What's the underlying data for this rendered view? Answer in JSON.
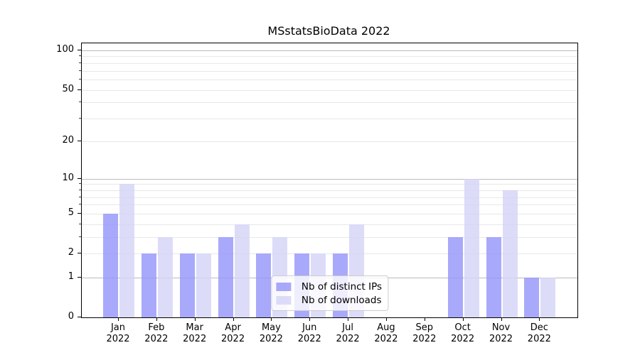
{
  "chart_data": {
    "type": "bar",
    "title": "MSstatsBioData 2022",
    "scale": "log1p",
    "ylim": [
      0,
      113
    ],
    "yticks": [
      0,
      1,
      2,
      5,
      10,
      20,
      50,
      100
    ],
    "y_major_gridlines": [
      1,
      10,
      100
    ],
    "y_minor_gridlines": [
      2,
      3,
      4,
      5,
      6,
      7,
      8,
      9,
      20,
      30,
      40,
      50,
      60,
      70,
      80,
      90
    ],
    "grid_color_major": "#bbbbbb",
    "grid_color_minor": "#e8e8e8",
    "legend_position": "lower center",
    "categories": [
      {
        "month": "Jan",
        "year": "2022"
      },
      {
        "month": "Feb",
        "year": "2022"
      },
      {
        "month": "Mar",
        "year": "2022"
      },
      {
        "month": "Apr",
        "year": "2022"
      },
      {
        "month": "May",
        "year": "2022"
      },
      {
        "month": "Jun",
        "year": "2022"
      },
      {
        "month": "Jul",
        "year": "2022"
      },
      {
        "month": "Aug",
        "year": "2022"
      },
      {
        "month": "Sep",
        "year": "2022"
      },
      {
        "month": "Oct",
        "year": "2022"
      },
      {
        "month": "Nov",
        "year": "2022"
      },
      {
        "month": "Dec",
        "year": "2022"
      }
    ],
    "series": [
      {
        "name": "Nb of distinct IPs",
        "color": "#9696fa",
        "alpha": 0.82,
        "values": [
          5,
          2,
          2,
          3,
          2,
          2,
          2,
          0,
          0,
          3,
          3,
          1
        ]
      },
      {
        "name": "Nb of downloads",
        "color": "#d4d4f8",
        "alpha": 0.82,
        "values": [
          9,
          3,
          2,
          4,
          3,
          2,
          4,
          0,
          0,
          10,
          8,
          1
        ]
      }
    ]
  }
}
